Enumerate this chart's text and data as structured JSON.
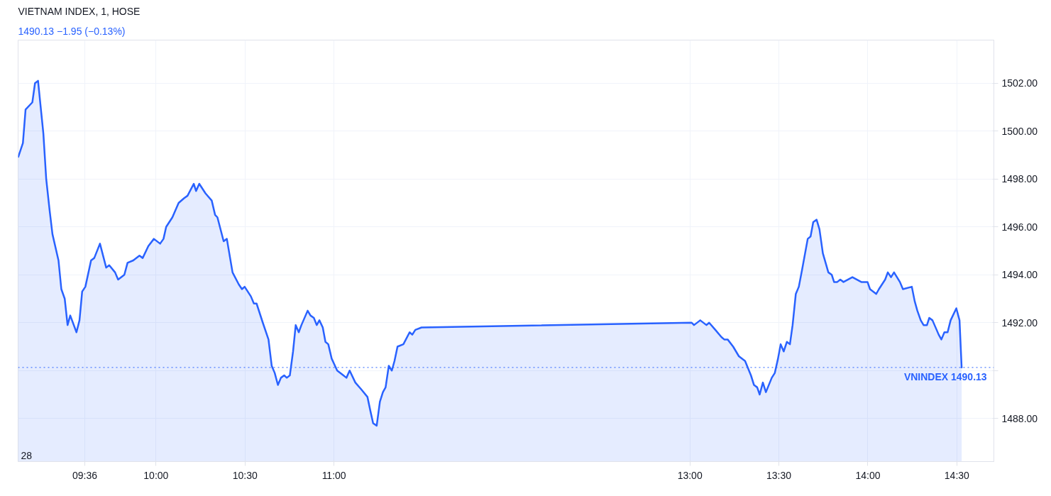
{
  "chart_data": {
    "type": "area",
    "title": "VIETNAM INDEX, 1, HOSE",
    "subtitle": "1490.13  −1.95 (−0.13%)",
    "x": [
      9.225,
      9.252,
      9.267,
      9.305,
      9.32,
      9.337,
      9.367,
      9.383,
      9.402,
      9.418,
      9.452,
      9.468,
      9.487,
      9.503,
      9.518,
      9.553,
      9.57,
      9.585,
      9.603,
      9.635,
      9.653,
      9.685,
      9.72,
      9.737,
      9.77,
      9.787,
      9.822,
      9.84,
      9.872,
      9.907,
      9.925,
      9.957,
      9.988,
      10.023,
      10.042,
      10.057,
      10.092,
      10.127,
      10.158,
      10.177,
      10.212,
      10.225,
      10.243,
      10.278,
      10.313,
      10.332,
      10.345,
      10.38,
      10.398,
      10.43,
      10.465,
      10.483,
      10.498,
      10.533,
      10.55,
      10.565,
      10.6,
      10.632,
      10.65,
      10.667,
      10.685,
      10.702,
      10.72,
      10.735,
      10.752,
      10.77,
      10.785,
      10.802,
      10.817,
      10.852,
      10.868,
      10.887,
      10.903,
      10.918,
      10.937,
      10.952,
      10.968,
      10.987,
      11.018,
      11.053,
      11.07,
      11.088,
      11.12,
      11.155,
      11.188,
      11.205,
      11.22,
      11.24,
      11.258,
      11.275,
      11.29,
      11.308,
      11.325,
      11.34,
      11.357,
      11.39,
      11.425,
      11.44,
      11.457,
      11.492,
      13.01,
      13.023,
      13.058,
      13.093,
      13.108,
      13.143,
      13.177,
      13.193,
      13.212,
      13.243,
      13.275,
      13.31,
      13.343,
      13.36,
      13.378,
      13.392,
      13.41,
      13.427,
      13.46,
      13.477,
      13.495,
      13.51,
      13.527,
      13.545,
      13.562,
      13.577,
      13.595,
      13.612,
      13.63,
      13.662,
      13.678,
      13.693,
      13.712,
      13.728,
      13.747,
      13.778,
      13.797,
      13.81,
      13.828,
      13.845,
      13.863,
      13.913,
      13.963,
      13.98,
      13.998,
      14.012,
      14.047,
      14.062,
      14.097,
      14.112,
      14.13,
      14.147,
      14.18,
      14.197,
      14.247,
      14.263,
      14.278,
      14.297,
      14.313,
      14.332,
      14.345,
      14.363,
      14.398,
      14.413,
      14.43,
      14.448,
      14.465,
      14.497,
      14.515,
      14.527
    ],
    "series": [
      {
        "color": "#2962ff",
        "values": [
          1498.9,
          1499.5,
          1500.9,
          1501.2,
          1502.0,
          1502.1,
          1499.9,
          1498.0,
          1496.7,
          1495.7,
          1494.6,
          1493.4,
          1493.0,
          1491.9,
          1492.3,
          1491.6,
          1492.1,
          1493.3,
          1493.5,
          1494.6,
          1494.7,
          1495.3,
          1494.3,
          1494.4,
          1494.1,
          1493.8,
          1494.0,
          1494.5,
          1494.6,
          1494.8,
          1494.7,
          1495.2,
          1495.5,
          1495.3,
          1495.5,
          1496.0,
          1496.4,
          1497.0,
          1497.2,
          1497.3,
          1497.8,
          1497.5,
          1497.8,
          1497.4,
          1497.1,
          1496.5,
          1496.4,
          1495.4,
          1495.5,
          1494.1,
          1493.6,
          1493.4,
          1493.5,
          1493.1,
          1492.8,
          1492.8,
          1492.0,
          1491.3,
          1490.2,
          1489.9,
          1489.4,
          1489.7,
          1489.8,
          1489.7,
          1489.8,
          1490.8,
          1491.9,
          1491.6,
          1491.9,
          1492.5,
          1492.3,
          1492.2,
          1491.9,
          1492.1,
          1491.8,
          1491.2,
          1491.1,
          1490.5,
          1490.0,
          1489.8,
          1489.7,
          1490.0,
          1489.5,
          1489.2,
          1488.9,
          1488.3,
          1487.8,
          1487.7,
          1488.7,
          1489.1,
          1489.3,
          1490.2,
          1490.0,
          1490.4,
          1491.0,
          1491.1,
          1491.6,
          1491.5,
          1491.7,
          1491.8,
          1492.0,
          1491.9,
          1492.1,
          1491.9,
          1492.0,
          1491.7,
          1491.4,
          1491.3,
          1491.3,
          1491.0,
          1490.6,
          1490.4,
          1489.8,
          1489.4,
          1489.3,
          1489.0,
          1489.5,
          1489.1,
          1489.7,
          1489.9,
          1490.5,
          1491.1,
          1490.8,
          1491.2,
          1491.1,
          1491.9,
          1493.2,
          1493.5,
          1494.2,
          1495.5,
          1495.6,
          1496.2,
          1496.3,
          1495.9,
          1494.9,
          1494.1,
          1494.0,
          1493.7,
          1493.7,
          1493.8,
          1493.7,
          1493.9,
          1493.7,
          1493.7,
          1493.7,
          1493.4,
          1493.2,
          1493.4,
          1493.8,
          1494.1,
          1493.9,
          1494.1,
          1493.7,
          1493.4,
          1493.5,
          1492.9,
          1492.5,
          1492.1,
          1491.9,
          1491.9,
          1492.2,
          1492.1,
          1491.5,
          1491.3,
          1491.6,
          1491.6,
          1492.1,
          1492.6,
          1492.1,
          1490.1
        ]
      }
    ],
    "xlim": [
      9.225,
      14.708
    ],
    "annotations": [
      "28"
    ],
    "xticks": [
      {
        "value": 9.6,
        "label": "09:36"
      },
      {
        "value": 10,
        "label": "10:00"
      },
      {
        "value": 10.5,
        "label": "10:30"
      },
      {
        "value": 11,
        "label": "11:00"
      },
      {
        "value": 13,
        "label": "13:00"
      },
      {
        "value": 13.5,
        "label": "13:30"
      },
      {
        "value": 14,
        "label": "14:00"
      },
      {
        "value": 14.5,
        "label": "14:30"
      }
    ],
    "ylim": [
      1486.2,
      1503.8
    ],
    "yticks": [
      {
        "value": 1488,
        "label": "1488.00"
      },
      {
        "value": 1490,
        "label": null
      },
      {
        "value": 1492,
        "label": "1492.00"
      },
      {
        "value": 1494,
        "label": "1494.00"
      },
      {
        "value": 1496,
        "label": "1496.00"
      },
      {
        "value": 1498,
        "label": "1498.00"
      },
      {
        "value": 1500,
        "label": "1500.00"
      },
      {
        "value": 1502,
        "label": "1502.00"
      }
    ],
    "ref_lines": [
      {
        "axis": "y",
        "value": 1490.13,
        "label": "VNINDEX  1490.13",
        "color": "#2962ff",
        "line_style": "dotted"
      }
    ],
    "grid": true
  }
}
